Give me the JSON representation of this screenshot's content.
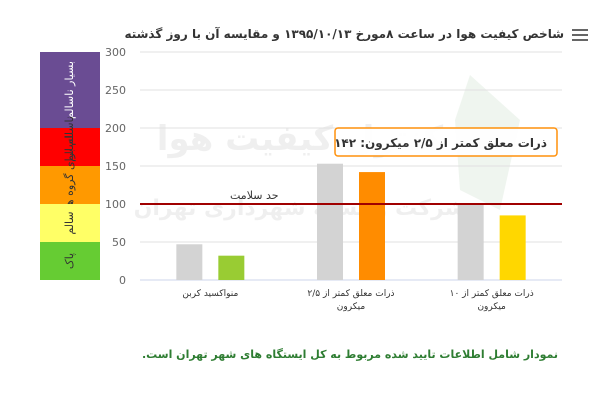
{
  "header": {
    "title": "شاخص کیفیت هوا در ساعت ۸مورخ ۱۳۹۵/۱۰/۱۳ و مقایسه آن با روز گذشته",
    "menu_icon": "menu-icon"
  },
  "watermark": {
    "line1": "کنترل کیفیت هوا",
    "line2": "شرکت وابسته شهرداری تهران"
  },
  "footer_note": "نمودار شامل اطلاعات تایید شده مربوط به کل ایستگاه های شهر تهران است.",
  "tooltip": {
    "text": "ذرات معلق کمتر از ۲/۵ میکرون: ۱۴۲"
  },
  "bands": [
    {
      "label": "بسیار ناسالم",
      "from": 200,
      "to": 300,
      "color": "#6a4c93"
    },
    {
      "label": "ناسالم",
      "from": 150,
      "to": 200,
      "color": "#ff0000"
    },
    {
      "label": "ناسالم برای گروه های حساس",
      "from": 100,
      "to": 150,
      "color": "#ff9900"
    },
    {
      "label": "سالم",
      "from": 50,
      "to": 100,
      "color": "#ffff66"
    },
    {
      "label": "پاک",
      "from": 0,
      "to": 50,
      "color": "#66cc33"
    }
  ],
  "chart_data": {
    "type": "bar",
    "categories": [
      "منواکسید کربن",
      "ذرات معلق کمتر از ۲/۵ میکرون",
      "ذرات معلق کمتر از ۱۰ میکرون"
    ],
    "series": [
      {
        "values": [
          47,
          153,
          100
        ],
        "color": "#d3d3d3"
      },
      {
        "values": [
          32,
          142,
          85
        ],
        "colors": [
          "#99cc33",
          "#ff8c00",
          "#ffd700"
        ]
      }
    ],
    "ylim": [
      0,
      300
    ],
    "yticks": [
      0,
      50,
      100,
      150,
      200,
      250,
      300
    ],
    "reference_line": {
      "value": 100,
      "label": "حد سلامت",
      "color": "#a00000"
    },
    "grid": true
  }
}
